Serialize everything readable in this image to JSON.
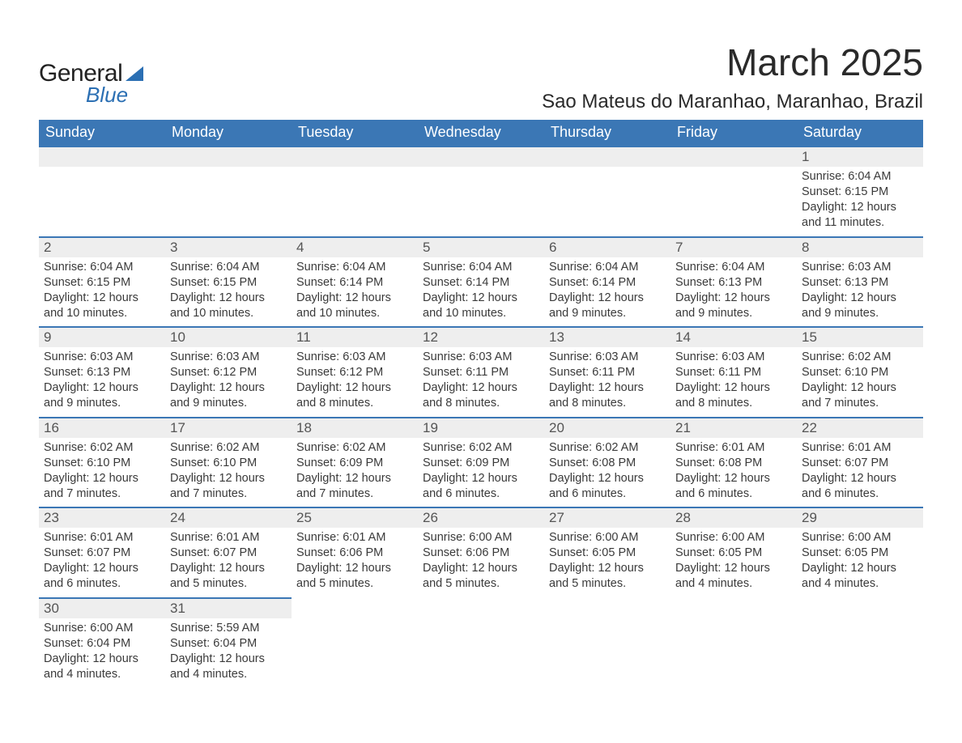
{
  "logo": {
    "word1": "General",
    "word2": "Blue"
  },
  "title": "March 2025",
  "location": "Sao Mateus do Maranhao, Maranhao, Brazil",
  "colors": {
    "header_bg": "#3b77b5",
    "header_text": "#ffffff",
    "daynum_bg": "#eeeeee",
    "border": "#3b77b5",
    "text": "#3a3a3a",
    "logo_accent": "#2b6fb3",
    "background": "#ffffff"
  },
  "fonts": {
    "title_size_pt": 34,
    "location_size_pt": 18,
    "header_size_pt": 14,
    "body_size_pt": 11
  },
  "layout": {
    "columns": 7,
    "rows": 6,
    "first_day_col_index": 6
  },
  "day_headers": [
    "Sunday",
    "Monday",
    "Tuesday",
    "Wednesday",
    "Thursday",
    "Friday",
    "Saturday"
  ],
  "weeks": [
    [
      {
        "blank": true
      },
      {
        "blank": true
      },
      {
        "blank": true
      },
      {
        "blank": true
      },
      {
        "blank": true
      },
      {
        "blank": true
      },
      {
        "d": "1",
        "sunrise": "Sunrise: 6:04 AM",
        "sunset": "Sunset: 6:15 PM",
        "day1": "Daylight: 12 hours",
        "day2": "and 11 minutes."
      }
    ],
    [
      {
        "d": "2",
        "sunrise": "Sunrise: 6:04 AM",
        "sunset": "Sunset: 6:15 PM",
        "day1": "Daylight: 12 hours",
        "day2": "and 10 minutes."
      },
      {
        "d": "3",
        "sunrise": "Sunrise: 6:04 AM",
        "sunset": "Sunset: 6:15 PM",
        "day1": "Daylight: 12 hours",
        "day2": "and 10 minutes."
      },
      {
        "d": "4",
        "sunrise": "Sunrise: 6:04 AM",
        "sunset": "Sunset: 6:14 PM",
        "day1": "Daylight: 12 hours",
        "day2": "and 10 minutes."
      },
      {
        "d": "5",
        "sunrise": "Sunrise: 6:04 AM",
        "sunset": "Sunset: 6:14 PM",
        "day1": "Daylight: 12 hours",
        "day2": "and 10 minutes."
      },
      {
        "d": "6",
        "sunrise": "Sunrise: 6:04 AM",
        "sunset": "Sunset: 6:14 PM",
        "day1": "Daylight: 12 hours",
        "day2": "and 9 minutes."
      },
      {
        "d": "7",
        "sunrise": "Sunrise: 6:04 AM",
        "sunset": "Sunset: 6:13 PM",
        "day1": "Daylight: 12 hours",
        "day2": "and 9 minutes."
      },
      {
        "d": "8",
        "sunrise": "Sunrise: 6:03 AM",
        "sunset": "Sunset: 6:13 PM",
        "day1": "Daylight: 12 hours",
        "day2": "and 9 minutes."
      }
    ],
    [
      {
        "d": "9",
        "sunrise": "Sunrise: 6:03 AM",
        "sunset": "Sunset: 6:13 PM",
        "day1": "Daylight: 12 hours",
        "day2": "and 9 minutes."
      },
      {
        "d": "10",
        "sunrise": "Sunrise: 6:03 AM",
        "sunset": "Sunset: 6:12 PM",
        "day1": "Daylight: 12 hours",
        "day2": "and 9 minutes."
      },
      {
        "d": "11",
        "sunrise": "Sunrise: 6:03 AM",
        "sunset": "Sunset: 6:12 PM",
        "day1": "Daylight: 12 hours",
        "day2": "and 8 minutes."
      },
      {
        "d": "12",
        "sunrise": "Sunrise: 6:03 AM",
        "sunset": "Sunset: 6:11 PM",
        "day1": "Daylight: 12 hours",
        "day2": "and 8 minutes."
      },
      {
        "d": "13",
        "sunrise": "Sunrise: 6:03 AM",
        "sunset": "Sunset: 6:11 PM",
        "day1": "Daylight: 12 hours",
        "day2": "and 8 minutes."
      },
      {
        "d": "14",
        "sunrise": "Sunrise: 6:03 AM",
        "sunset": "Sunset: 6:11 PM",
        "day1": "Daylight: 12 hours",
        "day2": "and 8 minutes."
      },
      {
        "d": "15",
        "sunrise": "Sunrise: 6:02 AM",
        "sunset": "Sunset: 6:10 PM",
        "day1": "Daylight: 12 hours",
        "day2": "and 7 minutes."
      }
    ],
    [
      {
        "d": "16",
        "sunrise": "Sunrise: 6:02 AM",
        "sunset": "Sunset: 6:10 PM",
        "day1": "Daylight: 12 hours",
        "day2": "and 7 minutes."
      },
      {
        "d": "17",
        "sunrise": "Sunrise: 6:02 AM",
        "sunset": "Sunset: 6:10 PM",
        "day1": "Daylight: 12 hours",
        "day2": "and 7 minutes."
      },
      {
        "d": "18",
        "sunrise": "Sunrise: 6:02 AM",
        "sunset": "Sunset: 6:09 PM",
        "day1": "Daylight: 12 hours",
        "day2": "and 7 minutes."
      },
      {
        "d": "19",
        "sunrise": "Sunrise: 6:02 AM",
        "sunset": "Sunset: 6:09 PM",
        "day1": "Daylight: 12 hours",
        "day2": "and 6 minutes."
      },
      {
        "d": "20",
        "sunrise": "Sunrise: 6:02 AM",
        "sunset": "Sunset: 6:08 PM",
        "day1": "Daylight: 12 hours",
        "day2": "and 6 minutes."
      },
      {
        "d": "21",
        "sunrise": "Sunrise: 6:01 AM",
        "sunset": "Sunset: 6:08 PM",
        "day1": "Daylight: 12 hours",
        "day2": "and 6 minutes."
      },
      {
        "d": "22",
        "sunrise": "Sunrise: 6:01 AM",
        "sunset": "Sunset: 6:07 PM",
        "day1": "Daylight: 12 hours",
        "day2": "and 6 minutes."
      }
    ],
    [
      {
        "d": "23",
        "sunrise": "Sunrise: 6:01 AM",
        "sunset": "Sunset: 6:07 PM",
        "day1": "Daylight: 12 hours",
        "day2": "and 6 minutes."
      },
      {
        "d": "24",
        "sunrise": "Sunrise: 6:01 AM",
        "sunset": "Sunset: 6:07 PM",
        "day1": "Daylight: 12 hours",
        "day2": "and 5 minutes."
      },
      {
        "d": "25",
        "sunrise": "Sunrise: 6:01 AM",
        "sunset": "Sunset: 6:06 PM",
        "day1": "Daylight: 12 hours",
        "day2": "and 5 minutes."
      },
      {
        "d": "26",
        "sunrise": "Sunrise: 6:00 AM",
        "sunset": "Sunset: 6:06 PM",
        "day1": "Daylight: 12 hours",
        "day2": "and 5 minutes."
      },
      {
        "d": "27",
        "sunrise": "Sunrise: 6:00 AM",
        "sunset": "Sunset: 6:05 PM",
        "day1": "Daylight: 12 hours",
        "day2": "and 5 minutes."
      },
      {
        "d": "28",
        "sunrise": "Sunrise: 6:00 AM",
        "sunset": "Sunset: 6:05 PM",
        "day1": "Daylight: 12 hours",
        "day2": "and 4 minutes."
      },
      {
        "d": "29",
        "sunrise": "Sunrise: 6:00 AM",
        "sunset": "Sunset: 6:05 PM",
        "day1": "Daylight: 12 hours",
        "day2": "and 4 minutes."
      }
    ],
    [
      {
        "d": "30",
        "sunrise": "Sunrise: 6:00 AM",
        "sunset": "Sunset: 6:04 PM",
        "day1": "Daylight: 12 hours",
        "day2": "and 4 minutes."
      },
      {
        "d": "31",
        "sunrise": "Sunrise: 5:59 AM",
        "sunset": "Sunset: 6:04 PM",
        "day1": "Daylight: 12 hours",
        "day2": "and 4 minutes."
      },
      {
        "blank": true
      },
      {
        "blank": true
      },
      {
        "blank": true
      },
      {
        "blank": true
      },
      {
        "blank": true
      }
    ]
  ]
}
